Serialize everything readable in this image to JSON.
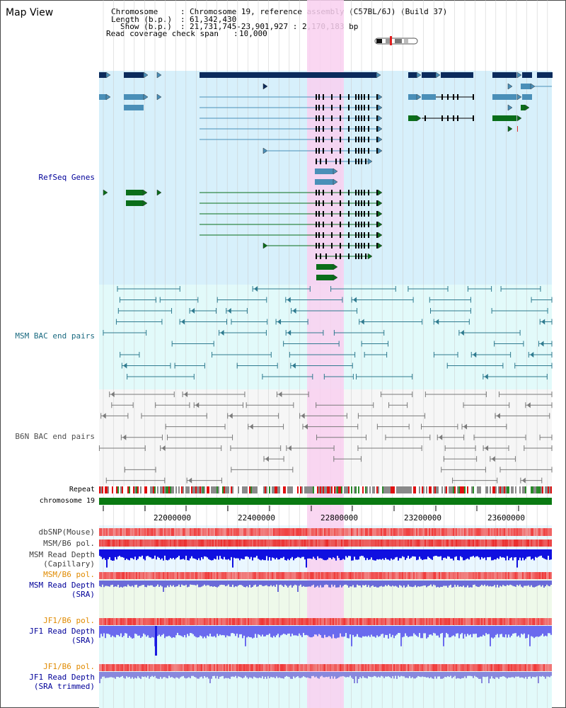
{
  "page": {
    "title": "Map View"
  },
  "info": {
    "chromosome_label": "Chromosome",
    "chromosome_value": "Chromosome 19, reference assembly (C57BL/6J) (Build 37)",
    "length_label": "Length (b.p.)",
    "length_value": "61,342,430",
    "show_label": "Show (b.p.)",
    "show_value": "21,731,745-23,901,927 : 2,170,183 bp",
    "coverage_label": "Read coverage check span",
    "coverage_value": "10,000"
  },
  "tracks": {
    "refseq": "RefSeq Genes",
    "msm_bac": "MSM BAC end pairs",
    "b6n_bac": "B6N BAC end pairs",
    "repeat": "Repeat",
    "chromosome": "chromosome 19",
    "dbsnp": "dbSNP(Mouse)",
    "msm_b6_pol_1": "MSM/B6 pol.",
    "msm_read_depth_cap_1": "MSM Read Depth",
    "msm_read_depth_cap_2": "(Capillary)",
    "msm_b6_pol_2": "MSM/B6 pol.",
    "msm_read_depth_sra_1": "MSM Read Depth",
    "msm_read_depth_sra_2": "(SRA)",
    "jf1_b6_pol_1": "JF1/B6 pol.",
    "jf1_read_depth_sra_1": "JF1 Read Depth",
    "jf1_read_depth_sra_2": "(SRA)",
    "jf1_b6_pol_2": "JF1/B6 pol.",
    "jf1_read_depth_trim_1": "JF1 Read Depth",
    "jf1_read_depth_trim_2": "(SRA trimmed)"
  },
  "axis": {
    "ticks": [
      "22000000",
      "22400000",
      "22800000",
      "23200000",
      "23600000"
    ]
  },
  "colors": {
    "refseq_bg": "#d7f0fb",
    "bac_bg": "#e2fafa",
    "highlight": "#f9d0f0",
    "dark_navy": "#0b2b5c",
    "steel_blue": "#4a8fb8",
    "dark_green": "#0a6e1a",
    "teal_line": "#2e7a8f",
    "gray_line": "#7a7a7a",
    "label_blue": "#000099",
    "label_teal": "#1a6a80",
    "label_orange": "#e08a00",
    "label_gray": "#404040"
  }
}
